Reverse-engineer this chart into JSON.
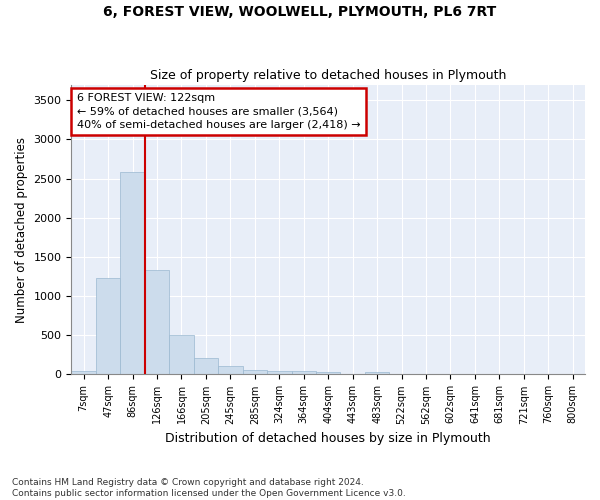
{
  "title1": "6, FOREST VIEW, WOOLWELL, PLYMOUTH, PL6 7RT",
  "title2": "Size of property relative to detached houses in Plymouth",
  "xlabel": "Distribution of detached houses by size in Plymouth",
  "ylabel": "Number of detached properties",
  "bar_color": "#ccdcec",
  "bar_edgecolor": "#9ab8d0",
  "background_color": "#e8eef8",
  "grid_color": "#ffffff",
  "vline_color": "#cc0000",
  "vline_x": 2.5,
  "annotation_text": "6 FOREST VIEW: 122sqm\n← 59% of detached houses are smaller (3,564)\n40% of semi-detached houses are larger (2,418) →",
  "footnote": "Contains HM Land Registry data © Crown copyright and database right 2024.\nContains public sector information licensed under the Open Government Licence v3.0.",
  "categories": [
    "7sqm",
    "47sqm",
    "86sqm",
    "126sqm",
    "166sqm",
    "205sqm",
    "245sqm",
    "285sqm",
    "324sqm",
    "364sqm",
    "404sqm",
    "443sqm",
    "483sqm",
    "522sqm",
    "562sqm",
    "602sqm",
    "641sqm",
    "681sqm",
    "721sqm",
    "760sqm",
    "800sqm"
  ],
  "values": [
    50,
    1230,
    2580,
    1330,
    500,
    215,
    110,
    55,
    45,
    40,
    35,
    0,
    30,
    0,
    0,
    0,
    0,
    0,
    0,
    0,
    0
  ],
  "ylim": [
    0,
    3700
  ],
  "yticks": [
    0,
    500,
    1000,
    1500,
    2000,
    2500,
    3000,
    3500
  ]
}
